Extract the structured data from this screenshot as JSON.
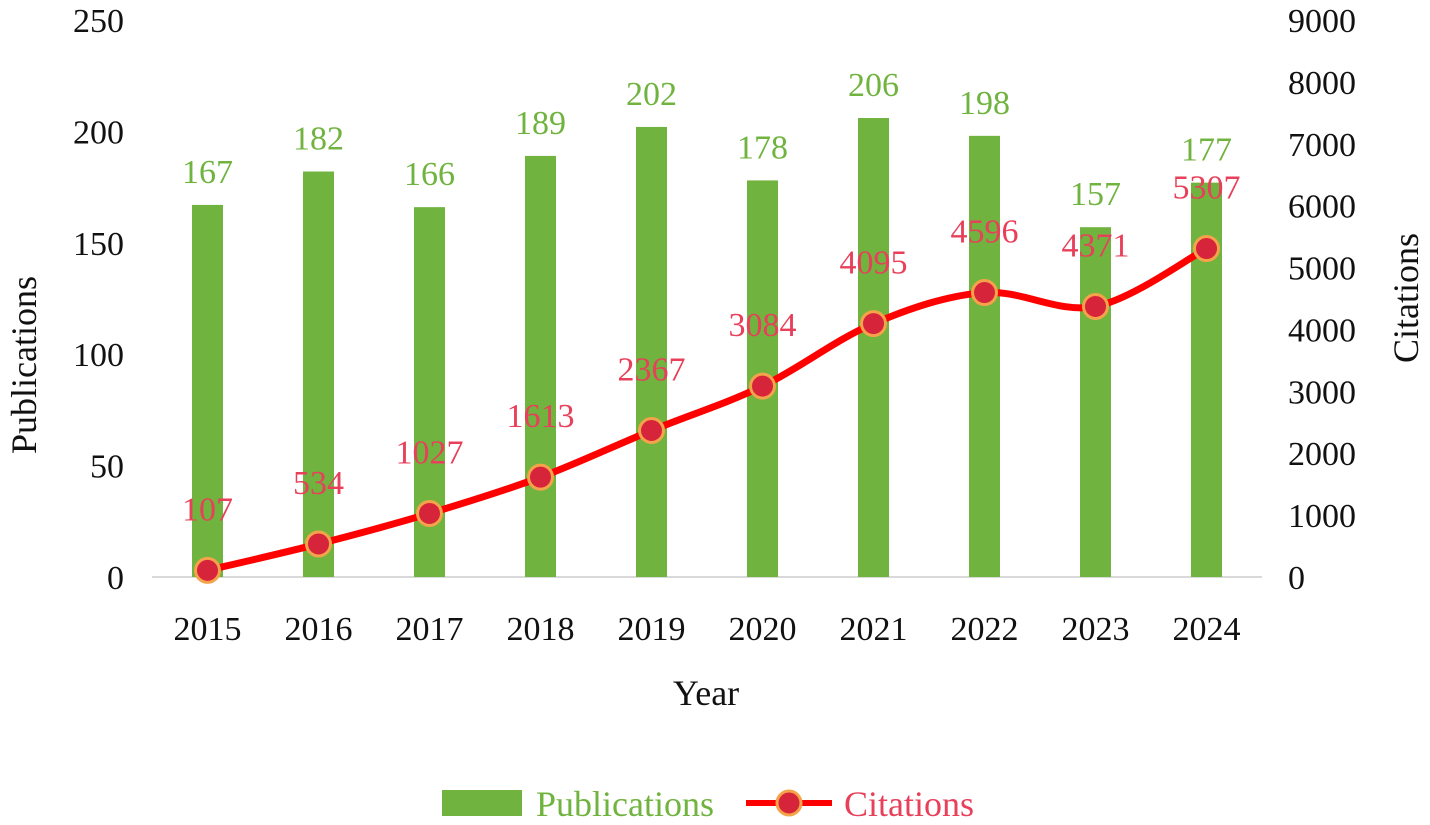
{
  "chart_data": {
    "type": "bar",
    "categories": [
      "2015",
      "2016",
      "2017",
      "2018",
      "2019",
      "2020",
      "2021",
      "2022",
      "2023",
      "2024"
    ],
    "series": [
      {
        "name": "Publications",
        "type": "bar",
        "axis": "left",
        "color": "#70b33f",
        "label_color": "#70b33f",
        "values": [
          167,
          182,
          166,
          189,
          202,
          178,
          206,
          198,
          157,
          177
        ]
      },
      {
        "name": "Citations",
        "type": "line",
        "axis": "right",
        "smooth": true,
        "color": "#ff0000",
        "marker_fill": "#d6243a",
        "marker_stroke": "#f5a34a",
        "label_color": "#e8405a",
        "values": [
          107,
          534,
          1027,
          1613,
          2367,
          3084,
          4095,
          4596,
          4371,
          5307
        ]
      }
    ],
    "xlabel": "Year",
    "ylabel": "Publications",
    "y2label": "Citations",
    "ylim": [
      0,
      250
    ],
    "y2lim": [
      0,
      9000
    ],
    "yticks": [
      0,
      50,
      100,
      150,
      200,
      250
    ],
    "y2ticks": [
      0,
      1000,
      2000,
      3000,
      4000,
      5000,
      6000,
      7000,
      8000,
      9000
    ],
    "grid": false,
    "legend": "bottom-center",
    "axis_line_color": "#d9d9d9"
  }
}
